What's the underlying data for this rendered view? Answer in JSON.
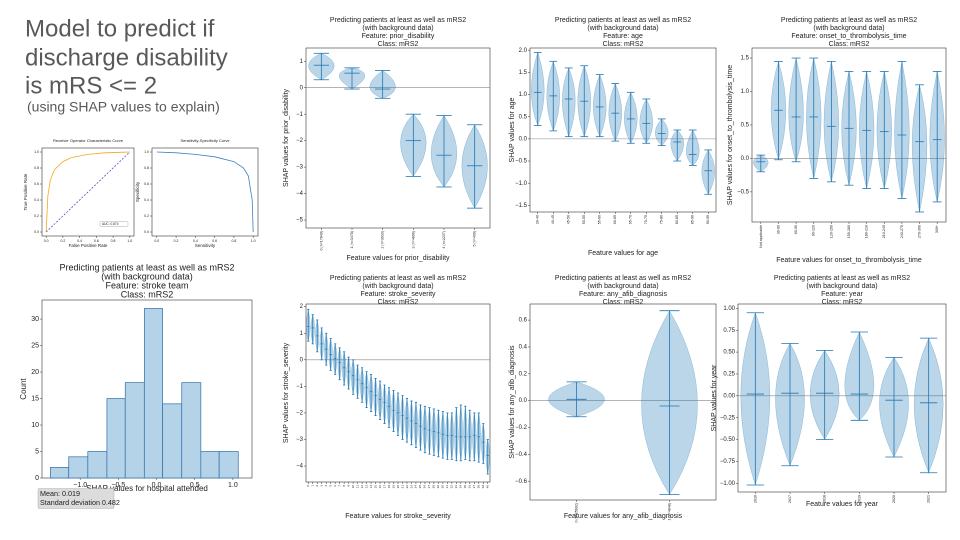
{
  "header": {
    "lines": [
      "Model to predict if",
      "discharge disability",
      "is mRS <= 2"
    ],
    "subtitle": "(using SHAP values to explain)"
  },
  "chart_data": [
    {
      "type": "line",
      "title": [
        "Receiver Operator Characteristic Curve"
      ],
      "xlabel": "False Positive Rate",
      "ylabel": "True Positive Rate",
      "xlim": [
        -0.05,
        1.05
      ],
      "ylim": [
        -0.05,
        1.05
      ],
      "xticks": [
        {
          "value": 0,
          "label": "0.0"
        },
        {
          "value": 0.2,
          "label": "0.2"
        },
        {
          "value": 0.4,
          "label": "0.4"
        },
        {
          "value": 0.6,
          "label": "0.6"
        },
        {
          "value": 0.8,
          "label": "0.8"
        },
        {
          "value": 1,
          "label": "1.0"
        }
      ],
      "yticks": [
        {
          "value": 0,
          "label": "0.0"
        },
        {
          "value": 0.2,
          "label": "0.2"
        },
        {
          "value": 0.4,
          "label": "0.4"
        },
        {
          "value": 0.6,
          "label": "0.6"
        },
        {
          "value": 0.8,
          "label": "0.8"
        },
        {
          "value": 1,
          "label": "1.0"
        }
      ],
      "series": [
        {
          "color": "#f5a623",
          "dash": false,
          "x": [
            0,
            0.02,
            0.05,
            0.1,
            0.2,
            0.3,
            0.5,
            0.7,
            1
          ],
          "values": [
            0,
            0.45,
            0.65,
            0.78,
            0.88,
            0.93,
            0.97,
            0.99,
            1
          ]
        },
        {
          "color": "#5b4fcf",
          "dash": true,
          "x": [
            0,
            1
          ],
          "values": [
            0,
            1
          ]
        }
      ],
      "annotations": [
        "AUC: 0.874"
      ]
    },
    {
      "type": "line",
      "title": [
        "Sensitivity-Specificity Curve"
      ],
      "xlabel": "Sensitivity",
      "ylabel": "Specificity",
      "xlim": [
        -0.05,
        1.05
      ],
      "ylim": [
        -0.05,
        1.05
      ],
      "xticks": [
        {
          "value": 0,
          "label": "0.0"
        },
        {
          "value": 0.2,
          "label": "0.2"
        },
        {
          "value": 0.4,
          "label": "0.4"
        },
        {
          "value": 0.6,
          "label": "0.6"
        },
        {
          "value": 0.8,
          "label": "0.8"
        },
        {
          "value": 1,
          "label": "1.0"
        }
      ],
      "yticks": [
        {
          "value": 0,
          "label": "0.0"
        },
        {
          "value": 0.2,
          "label": "0.2"
        },
        {
          "value": 0.4,
          "label": "0.4"
        },
        {
          "value": 0.6,
          "label": "0.6"
        },
        {
          "value": 0.8,
          "label": "0.8"
        },
        {
          "value": 1,
          "label": "1.0"
        }
      ],
      "series": [
        {
          "color": "#3a7fc4",
          "dash": false,
          "x": [
            0,
            0.2,
            0.4,
            0.6,
            0.8,
            0.9,
            0.95,
            0.99,
            1
          ],
          "values": [
            1,
            0.99,
            0.97,
            0.94,
            0.88,
            0.8,
            0.7,
            0.4,
            0
          ]
        }
      ]
    },
    {
      "type": "histogram",
      "title": [
        "Predicting patients at least as well as mRS2",
        "(with background data)",
        "Feature: stroke team",
        "Class: mRS2"
      ],
      "xlabel": "SHAP values for hospital attended",
      "ylabel": "Count",
      "color": "#b4d2e8",
      "edge": "#2f6fa8",
      "bins": [
        -1.39,
        -1.15,
        -0.9,
        -0.65,
        -0.41,
        -0.16,
        0.08,
        0.33,
        0.58,
        0.82,
        1.07
      ],
      "counts": [
        2,
        4,
        5,
        15,
        18,
        32,
        14,
        18,
        5,
        5
      ],
      "xlim": [
        -1.5,
        1.25
      ],
      "ylim": [
        0,
        33.6
      ],
      "xticks": [
        {
          "value": -1,
          "label": "−1.0"
        },
        {
          "value": -0.5,
          "label": "−0.5"
        },
        {
          "value": 0,
          "label": "0.0"
        },
        {
          "value": 0.5,
          "label": "0.5"
        },
        {
          "value": 1,
          "label": "1.0"
        }
      ],
      "yticks": [
        0,
        5,
        10,
        15,
        20,
        25,
        30
      ],
      "annotations": [
        "Mean: 0.019",
        "Standard deviation 0.482"
      ]
    },
    {
      "type": "violin",
      "title": [
        "Predicting patients at least as well as mRS2",
        "(with background data)",
        "Feature: prior_disability",
        "Class: mRS2"
      ],
      "xlabel": "Feature values for prior_disability",
      "ylabel": "SHAP values for prior_disability",
      "color": "#1f77b4",
      "categories": [
        "0 (n=17849)",
        "1 (n=3478)",
        "2 (n=3633)",
        "3 (n=4896)",
        "4 (n=2237)",
        "5 (n=409)"
      ],
      "medians": [
        0.85,
        0.55,
        -0.05,
        -2.0,
        -2.55,
        -2.95
      ],
      "mins": [
        0.3,
        -0.05,
        -0.4,
        -3.35,
        -3.75,
        -4.55
      ],
      "maxes": [
        1.3,
        0.75,
        0.65,
        -1.0,
        -1.05,
        -1.4
      ],
      "ylim": [
        -5.3,
        1.5
      ],
      "yticks": [
        1,
        0,
        {
          "value": -1,
          "label": "−1"
        },
        {
          "value": -2,
          "label": "−2"
        },
        {
          "value": -3,
          "label": "−3"
        },
        {
          "value": -4,
          "label": "−4"
        },
        {
          "value": -5,
          "label": "−5"
        }
      ]
    },
    {
      "type": "violin",
      "title": [
        "Predicting patients at least as well as mRS2",
        "(with background data)",
        "Feature: age",
        "Class: mRS2"
      ],
      "xlabel": "Feature values for age",
      "ylabel": "SHAP values for age",
      "color": "#1f77b4",
      "categories": [
        "30-40",
        "40-45",
        "45-50",
        "50-55",
        "55-60",
        "60-65",
        "65-70",
        "70-75",
        "75-80",
        "80-85",
        "85-90",
        "90-95"
      ],
      "medians": [
        1.05,
        0.97,
        0.9,
        0.85,
        0.72,
        0.58,
        0.45,
        0.35,
        0.12,
        -0.07,
        -0.35,
        -0.72
      ],
      "mins": [
        0.3,
        0.18,
        0.05,
        0.05,
        0.05,
        -0.05,
        -0.1,
        -0.1,
        -0.15,
        -0.5,
        -0.6,
        -1.25
      ],
      "maxes": [
        1.95,
        1.75,
        1.6,
        1.65,
        1.45,
        1.25,
        1.05,
        0.9,
        0.45,
        0.2,
        0.2,
        -0.25
      ],
      "ylim": [
        -1.65,
        2.05
      ],
      "yticks": [
        {
          "value": 2,
          "label": "2.0"
        },
        {
          "value": 1.5,
          "label": "1.5"
        },
        {
          "value": 1,
          "label": "1.0"
        },
        {
          "value": 0.5,
          "label": "0.5"
        },
        {
          "value": 0,
          "label": "0.0"
        },
        {
          "value": -0.5,
          "label": "−0.5"
        },
        {
          "value": -1,
          "label": "−1.0"
        },
        {
          "value": -1.5,
          "label": "−1.5"
        }
      ]
    },
    {
      "type": "violin",
      "title": [
        "Predicting patients at least as well as mRS2",
        "(with background data)",
        "Feature: onset_to_thrombolysis_time",
        "Class: mRS2"
      ],
      "xlabel": "Feature values for onset_to_thrombolysis_time",
      "ylabel": "SHAP values for onset_to_thrombolysis_time",
      "color": "#1f77b4",
      "categories": [
        "Not applicable",
        "30-60",
        "60-90",
        "90-120",
        "120-150",
        "150-180",
        "180-210",
        "210-240",
        "240-270",
        "270-300",
        "300+"
      ],
      "medians": [
        -0.05,
        0.72,
        0.62,
        0.62,
        0.48,
        0.45,
        0.42,
        0.4,
        0.35,
        0.25,
        0.28
      ],
      "mins": [
        -0.2,
        -0.02,
        -0.05,
        -0.3,
        -0.35,
        -0.4,
        -0.45,
        -0.45,
        -0.6,
        -0.8,
        -0.65
      ],
      "maxes": [
        0.05,
        1.45,
        1.5,
        1.5,
        1.45,
        1.3,
        1.3,
        1.3,
        1.45,
        1.1,
        1.3
      ],
      "ylim": [
        -0.95,
        1.65
      ],
      "yticks": [
        {
          "value": -0.5,
          "label": "−0.5"
        },
        {
          "value": 0,
          "label": "0.0"
        },
        {
          "value": 0.5,
          "label": "0.5"
        },
        {
          "value": 1,
          "label": "1.0"
        },
        {
          "value": 1.5,
          "label": "1.5"
        }
      ]
    },
    {
      "type": "violin",
      "title": [
        "Predicting patients at least as well as mRS2",
        "(with background data)",
        "Feature: stroke_severity",
        "Class: mRS2"
      ],
      "xlabel": "Feature values for stroke_severity",
      "ylabel": "SHAP values for stroke_severity",
      "color": "#1f77b4",
      "categories": [
        "0",
        "1",
        "2",
        "3",
        "4",
        "5",
        "6",
        "7",
        "8",
        "9",
        "10",
        "11",
        "12",
        "13",
        "14",
        "15",
        "16",
        "17",
        "18",
        "19",
        "20",
        "21",
        "22",
        "23",
        "24",
        "25",
        "26",
        "27",
        "28",
        "29",
        "30",
        "31",
        "32",
        "33",
        "34",
        "35",
        "36",
        "37",
        "38",
        "39",
        "40"
      ],
      "medians": [
        1.25,
        1.2,
        0.9,
        0.6,
        0.4,
        0.2,
        0.05,
        -0.1,
        -0.3,
        -0.45,
        -0.6,
        -0.75,
        -0.9,
        -1.05,
        -1.2,
        -1.35,
        -1.5,
        -1.6,
        -1.75,
        -1.9,
        -2.0,
        -2.1,
        -2.2,
        -2.3,
        -2.4,
        -2.5,
        -2.6,
        -2.65,
        -2.7,
        -2.75,
        -2.8,
        -2.85,
        -2.85,
        -2.9,
        -2.9,
        -2.9,
        -2.9,
        -2.85,
        -2.9,
        -3.1,
        -3.6
      ],
      "mins": [
        0.7,
        0.6,
        0.3,
        0,
        -0.2,
        -0.4,
        -0.55,
        -0.75,
        -0.95,
        -1.1,
        -1.3,
        -1.45,
        -1.6,
        -1.8,
        -1.95,
        -2.1,
        -2.25,
        -2.4,
        -2.55,
        -2.7,
        -2.85,
        -3.0,
        -3.1,
        -3.2,
        -3.3,
        -3.4,
        -3.5,
        -3.55,
        -3.6,
        -3.65,
        -3.7,
        -3.75,
        -3.75,
        -3.8,
        -3.8,
        -3.75,
        -3.8,
        -3.8,
        -3.85,
        -3.9,
        -4.3
      ],
      "maxes": [
        1.9,
        1.7,
        1.5,
        1.2,
        1.0,
        0.8,
        0.6,
        0.45,
        0.3,
        0.1,
        0,
        -0.2,
        -0.3,
        -0.45,
        -0.55,
        -0.7,
        -0.8,
        -0.95,
        -1.05,
        -1.15,
        -1.25,
        -1.35,
        -1.45,
        -1.55,
        -1.6,
        -1.7,
        -1.75,
        -1.8,
        -1.85,
        -1.9,
        -1.95,
        -2.0,
        -2.0,
        -1.8,
        -1.7,
        -1.75,
        -1.9,
        -2.0,
        -2.0,
        -2.4,
        -3.0
      ],
      "ylim": [
        -4.6,
        2.1
      ],
      "yticks": [
        2,
        1,
        0,
        {
          "value": -1,
          "label": "−1"
        },
        {
          "value": -2,
          "label": "−2"
        },
        {
          "value": -3,
          "label": "−3"
        },
        {
          "value": -4,
          "label": "−4"
        }
      ]
    },
    {
      "type": "violin",
      "title": [
        "Predicting patients at least as well as mRS2",
        "(with background data)",
        "Feature: any_afib_diagnosis",
        "Class: mRS2"
      ],
      "xlabel": "Feature values for any_afib_diagnosis",
      "ylabel": "SHAP values for any_afib_diagnosis",
      "color": "#1f77b4",
      "categories": [
        "0 (n=25602)",
        "1 (n=4848)"
      ],
      "medians": [
        0.01,
        -0.04
      ],
      "mins": [
        -0.12,
        -0.7
      ],
      "maxes": [
        0.14,
        0.67
      ],
      "ylim": [
        -0.74,
        0.72
      ],
      "yticks": [
        {
          "value": -0.6,
          "label": "−0.6"
        },
        {
          "value": -0.4,
          "label": "−0.4"
        },
        {
          "value": -0.2,
          "label": "−0.2"
        },
        {
          "value": 0,
          "label": "0.0"
        },
        {
          "value": 0.2,
          "label": "0.2"
        },
        {
          "value": 0.4,
          "label": "0.4"
        },
        {
          "value": 0.6,
          "label": "0.6"
        }
      ]
    },
    {
      "type": "violin",
      "title": [
        "Predicting patients at least as well as mRS2",
        "(with background data)",
        "Feature: year",
        "Class: mRS2"
      ],
      "xlabel": "Feature values for year",
      "ylabel": "SHAP values for year",
      "color": "#1f77b4",
      "categories": [
        "2016",
        "2017",
        "2018",
        "2019",
        "2020",
        "2021"
      ],
      "medians": [
        0.02,
        0.03,
        0.03,
        0.02,
        -0.05,
        -0.08
      ],
      "mins": [
        -1.02,
        -0.8,
        -0.5,
        -0.28,
        -0.7,
        -0.88
      ],
      "maxes": [
        0.95,
        0.6,
        0.52,
        0.73,
        0.44,
        0.66
      ],
      "ylim": [
        -1.1,
        1.05
      ],
      "yticks": [
        {
          "value": -1,
          "label": "−1.00"
        },
        {
          "value": -0.75,
          "label": "−0.75"
        },
        {
          "value": -0.5,
          "label": "−0.50"
        },
        {
          "value": -0.25,
          "label": "−0.25"
        },
        {
          "value": 0,
          "label": "0.00"
        },
        {
          "value": 0.25,
          "label": "0.25"
        },
        {
          "value": 0.5,
          "label": "0.50"
        },
        {
          "value": 0.75,
          "label": "0.75"
        },
        {
          "value": 1,
          "label": "1.00"
        }
      ]
    }
  ]
}
